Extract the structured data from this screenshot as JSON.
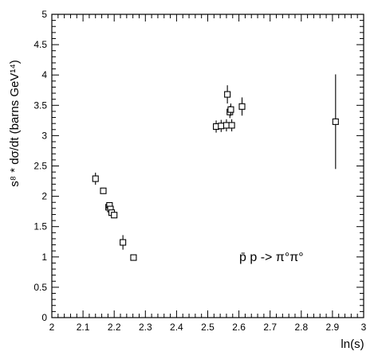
{
  "chart_data": {
    "type": "scatter",
    "xlabel": "ln(s)",
    "ylabel": "s⁸ * dσ/dt (barns GeV¹⁴)",
    "annotation": "p̄ p -> π°π°",
    "xlim": [
      2,
      3
    ],
    "ylim": [
      0,
      5
    ],
    "x_ticks": [
      "2",
      "2.1",
      "2.2",
      "2.3",
      "2.4",
      "2.5",
      "2.6",
      "2.7",
      "2.8",
      "2.9",
      "3"
    ],
    "y_ticks": [
      "0",
      "0.5",
      "1",
      "1.5",
      "2",
      "2.5",
      "3",
      "3.5",
      "4",
      "4.5",
      "5"
    ],
    "grid": false,
    "marker": "open-square",
    "points": [
      {
        "x": 2.14,
        "y": 2.29,
        "err": 0.1
      },
      {
        "x": 2.165,
        "y": 2.09,
        "err": 0.05
      },
      {
        "x": 2.182,
        "y": 1.82,
        "err": 0.05
      },
      {
        "x": 2.185,
        "y": 1.85,
        "err": 0.05
      },
      {
        "x": 2.188,
        "y": 1.79,
        "err": 0.05
      },
      {
        "x": 2.192,
        "y": 1.73,
        "err": 0.05
      },
      {
        "x": 2.2,
        "y": 1.69,
        "err": 0.05
      },
      {
        "x": 2.228,
        "y": 1.24,
        "err": 0.12
      },
      {
        "x": 2.262,
        "y": 0.99,
        "err": 0.0
      },
      {
        "x": 2.527,
        "y": 3.15,
        "err": 0.1
      },
      {
        "x": 2.543,
        "y": 3.16,
        "err": 0.1
      },
      {
        "x": 2.56,
        "y": 3.17,
        "err": 0.1
      },
      {
        "x": 2.563,
        "y": 3.68,
        "err": 0.15
      },
      {
        "x": 2.571,
        "y": 3.39,
        "err": 0.1
      },
      {
        "x": 2.574,
        "y": 3.43,
        "err": 0.1
      },
      {
        "x": 2.577,
        "y": 3.17,
        "err": 0.1
      },
      {
        "x": 2.61,
        "y": 3.48,
        "err": 0.15
      },
      {
        "x": 2.91,
        "y": 3.23,
        "err": 0.78
      }
    ]
  }
}
